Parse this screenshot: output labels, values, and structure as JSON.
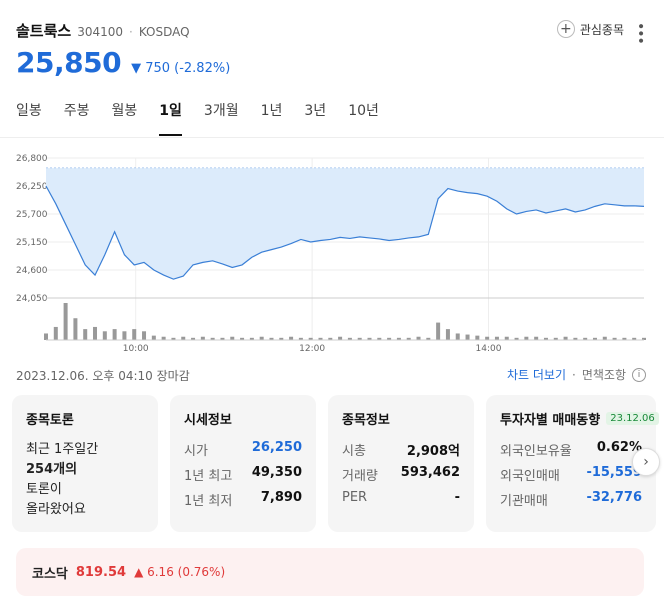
{
  "stock": {
    "name": "솔트룩스",
    "code": "304100",
    "separator": "·",
    "market": "KOSDAQ",
    "price": "25,850",
    "change": "▼ 750 (-2.82%)",
    "watch_label": "관심종목",
    "more_icon": "more-vertical-icon"
  },
  "tabs": [
    "일봉",
    "주봉",
    "월봉",
    "1일",
    "3개월",
    "1년",
    "3년",
    "10년"
  ],
  "active_tab": "1일",
  "chart_data": {
    "type": "area",
    "y_ticks": [
      "26,800",
      "26,250",
      "25,700",
      "25,150",
      "24,600",
      "24,050"
    ],
    "ylim": [
      24050,
      26800
    ],
    "x_ticks": [
      "10:00",
      "12:00",
      "14:00"
    ],
    "prev_close": 26600,
    "prices": [
      26250,
      25900,
      25500,
      25100,
      24700,
      24500,
      24900,
      25350,
      24900,
      24700,
      24750,
      24600,
      24500,
      24420,
      24480,
      24700,
      24750,
      24780,
      24720,
      24650,
      24700,
      24850,
      24950,
      25000,
      25050,
      25120,
      25200,
      25150,
      25180,
      25200,
      25240,
      25220,
      25250,
      25230,
      25210,
      25180,
      25200,
      25230,
      25250,
      25300,
      26000,
      26200,
      26150,
      26120,
      26100,
      26050,
      25950,
      25800,
      25700,
      25750,
      25780,
      25720,
      25760,
      25800,
      25740,
      25780,
      25850,
      25900,
      25880,
      25860,
      25860,
      25850
    ],
    "volumes": [
      6,
      12,
      34,
      20,
      10,
      12,
      8,
      10,
      8,
      10,
      8,
      4,
      3,
      2,
      3,
      2,
      3,
      2,
      2,
      3,
      2,
      2,
      3,
      2,
      2,
      3,
      2,
      2,
      2,
      2,
      3,
      2,
      2,
      2,
      2,
      2,
      2,
      2,
      3,
      2,
      16,
      10,
      6,
      5,
      4,
      3,
      3,
      3,
      2,
      3,
      3,
      2,
      2,
      3,
      2,
      2,
      2,
      3,
      2,
      2,
      2,
      2
    ]
  },
  "meta": {
    "timestamp": "2023.12.06. 오후 04:10 장마감",
    "chart_more": "차트 더보기",
    "disclaimer": "면책조항",
    "dot": "·",
    "info_icon": "info-icon"
  },
  "cards": {
    "discussion": {
      "title": "종목토론",
      "line1": "최근 1주일간",
      "count": "254개의",
      "line3": "토론이",
      "line4": "올라왔어요"
    },
    "quote": {
      "title": "시세정보",
      "rows": [
        {
          "k": "시가",
          "v": "26,250"
        },
        {
          "k": "1년 최고",
          "v": "49,350"
        },
        {
          "k": "1년 최저",
          "v": "7,890"
        }
      ]
    },
    "info": {
      "title": "종목정보",
      "rows": [
        {
          "k": "시총",
          "v": "2,908억"
        },
        {
          "k": "거래량",
          "v": "593,462"
        },
        {
          "k": "PER",
          "v": "-"
        }
      ]
    },
    "investor": {
      "title": "투자자별 매매동향",
      "date": "23.12.06",
      "rows": [
        {
          "k": "외국인보유율",
          "v": "0.62%"
        },
        {
          "k": "외국인매매",
          "v": "-15,559"
        },
        {
          "k": "기관매매",
          "v": "-32,776"
        }
      ]
    }
  },
  "kosdaq": {
    "name": "코스닥",
    "value": "819.54",
    "change": "▲ 6.16 (0.76%)"
  },
  "colors": {
    "down": "#1f6bd8",
    "up": "#e03a3a",
    "area_fill": "#dcebfb",
    "line": "#3a7fd6"
  }
}
